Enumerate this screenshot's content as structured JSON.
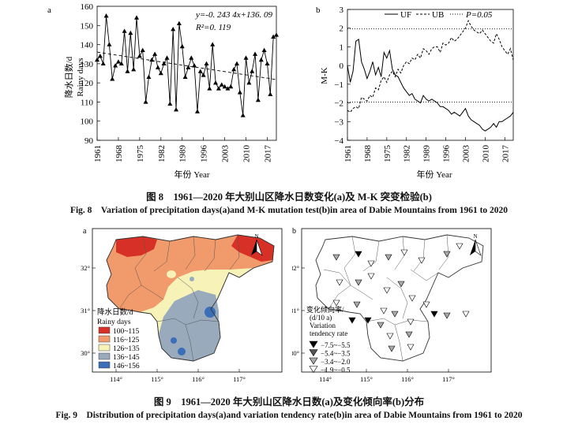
{
  "fig8": {
    "caption_cn": "图 8　1961—2020 年大别山区降水日数变化(a)及 M-K 突变检验(b)",
    "caption_en": "Fig. 8　Variation of precipitation days(a)and M-K mutation test(b)in area of Dabie Mountains from 1961 to 2020",
    "panel_a": {
      "letter": "a",
      "equation": "y=-0. 243 4x+136. 09",
      "r2": "R²=0. 119",
      "ylabel_cn": "降水日数/d",
      "ylabel_en": "Rainy days",
      "xlabel": "年份 Year"
    },
    "panel_b": {
      "letter": "b",
      "ylabel": "M-K",
      "xlabel": "年份 Year",
      "legend": [
        "UF",
        "UB",
        "P=0.05"
      ]
    }
  },
  "fig9": {
    "caption_cn": "图 9　1961—2020 年大别山区降水日数(a)及变化倾向率(b)分布",
    "caption_en": "Fig. 9　Distribution of precipitation days(a)and variation tendency rate(b)in area of Dabie Mountains from 1961 to 2020",
    "map_a": {
      "letter": "a",
      "north": "N",
      "legend_title_cn": "降水日数/d",
      "legend_title_en": "Rainy days",
      "legend_items": [
        {
          "label": "100~115",
          "color": "#d73027"
        },
        {
          "label": "116~125",
          "color": "#f19a6b"
        },
        {
          "label": "126~135",
          "color": "#f6f2b8"
        },
        {
          "label": "136~145",
          "color": "#9aaabd"
        },
        {
          "label": "146~156",
          "color": "#3a6fb8"
        }
      ],
      "lat_labels": [
        "32°",
        "31°",
        "30°"
      ],
      "lon_labels": [
        "114°",
        "115°",
        "116°",
        "117°"
      ]
    },
    "map_b": {
      "letter": "b",
      "north": "N",
      "legend_title": [
        "变化倾向率/",
        "(d/10 a)",
        "Variation",
        "tendency rate"
      ],
      "legend_items": [
        {
          "label": "−7.5~−5.5",
          "symbol": "triangle-black"
        },
        {
          "label": "−5.4~−3.5",
          "symbol": "triangle-darkgray"
        },
        {
          "label": "−3.4~−2.0",
          "symbol": "triangle-gray"
        },
        {
          "label": "−1.9~−0.5",
          "symbol": "triangle-white"
        }
      ],
      "lat_labels": [
        "32°",
        "31°",
        "30°"
      ],
      "lon_labels": [
        "114°",
        "115°",
        "116°",
        "117°"
      ]
    }
  },
  "chart_data": [
    {
      "type": "line",
      "panel": "a",
      "x_ticks": [
        1961,
        1968,
        1975,
        1982,
        1989,
        1996,
        2003,
        2010,
        2017
      ],
      "y_ticks": [
        90,
        100,
        110,
        120,
        130,
        140,
        150,
        160
      ],
      "ylim": [
        90,
        160
      ],
      "xlim": [
        1961,
        2020
      ],
      "series": [
        {
          "x": [
            1961,
            1962,
            1963,
            1964,
            1965,
            1966,
            1967,
            1968,
            1969,
            1970,
            1971,
            1972,
            1973,
            1974,
            1975,
            1976,
            1977,
            1978,
            1979,
            1980,
            1981,
            1982,
            1983,
            1984,
            1985,
            1986,
            1987,
            1988,
            1989,
            1990,
            1991,
            1992,
            1993,
            1994,
            1995,
            1996,
            1997,
            1998,
            1999,
            2000,
            2001,
            2002,
            2003,
            2004,
            2005,
            2006,
            2007,
            2008,
            2009,
            2010,
            2011,
            2012,
            2013,
            2014,
            2015,
            2016,
            2017,
            2018,
            2019,
            2020
          ],
          "values": [
            132,
            134,
            130,
            155,
            140,
            122,
            129,
            131,
            130,
            147,
            126,
            146,
            127,
            154,
            134,
            137,
            110,
            123,
            132,
            135,
            128,
            125,
            130,
            133,
            109,
            148,
            106,
            151,
            139,
            123,
            128,
            133,
            129,
            105,
            126,
            124,
            130,
            117,
            140,
            120,
            117,
            119,
            118,
            117,
            118,
            127,
            130,
            115,
            103,
            133,
            120,
            126,
            135,
            111,
            132,
            137,
            130,
            114,
            144,
            145
          ]
        },
        {
          "name": "trend",
          "x": [
            1961,
            2020
          ],
          "values": [
            136.09,
            121.73
          ]
        }
      ]
    },
    {
      "type": "line",
      "panel": "b",
      "x_ticks": [
        1961,
        1968,
        1975,
        1982,
        1989,
        1996,
        2003,
        2010,
        2017
      ],
      "y_ticks": [
        -4,
        -3,
        -2,
        -1,
        0,
        1,
        2,
        3
      ],
      "ylim": [
        -4,
        3
      ],
      "xlim": [
        1961,
        2020
      ],
      "series": [
        {
          "name": "UF",
          "x": [
            1961,
            1962,
            1963,
            1964,
            1965,
            1966,
            1967,
            1968,
            1969,
            1970,
            1971,
            1972,
            1973,
            1974,
            1975,
            1976,
            1977,
            1978,
            1979,
            1980,
            1981,
            1982,
            1983,
            1984,
            1985,
            1986,
            1987,
            1988,
            1989,
            1990,
            1991,
            1992,
            1993,
            1994,
            1995,
            1996,
            1997,
            1998,
            1999,
            2000,
            2001,
            2002,
            2003,
            2004,
            2005,
            2006,
            2007,
            2008,
            2009,
            2010,
            2011,
            2012,
            2013,
            2014,
            2015,
            2016,
            2017,
            2018,
            2019,
            2020
          ],
          "values": [
            0.0,
            -0.9,
            -0.3,
            1.3,
            1.4,
            0.2,
            -0.2,
            -0.7,
            -0.3,
            0.2,
            -0.5,
            -0.1,
            -0.6,
            0.7,
            0.4,
            0.8,
            -0.2,
            -0.5,
            -0.6,
            -0.9,
            -1.2,
            -1.4,
            -1.6,
            -1.5,
            -1.8,
            -1.9,
            -2.0,
            -1.6,
            -1.8,
            -1.9,
            -1.8,
            -1.9,
            -2.0,
            -2.2,
            -2.2,
            -2.3,
            -2.4,
            -2.6,
            -2.5,
            -2.6,
            -2.7,
            -2.5,
            -2.3,
            -2.7,
            -2.9,
            -3.0,
            -3.1,
            -3.2,
            -3.4,
            -3.5,
            -3.4,
            -3.3,
            -3.1,
            -3.3,
            -3.0,
            -3.0,
            -2.9,
            -2.8,
            -2.7,
            -2.5
          ]
        },
        {
          "name": "UB",
          "x": [
            1961,
            1962,
            1963,
            1964,
            1965,
            1966,
            1967,
            1968,
            1969,
            1970,
            1971,
            1972,
            1973,
            1974,
            1975,
            1976,
            1977,
            1978,
            1979,
            1980,
            1981,
            1982,
            1983,
            1984,
            1985,
            1986,
            1987,
            1988,
            1989,
            1990,
            1991,
            1992,
            1993,
            1994,
            1995,
            1996,
            1997,
            1998,
            1999,
            2000,
            2001,
            2002,
            2003,
            2004,
            2005,
            2006,
            2007,
            2008,
            2009,
            2010,
            2011,
            2012,
            2013,
            2014,
            2015,
            2016,
            2017,
            2018,
            2019,
            2020
          ],
          "values": [
            -2.4,
            -2.5,
            -2.3,
            -2.2,
            -2.3,
            -1.7,
            -1.8,
            -1.9,
            -1.6,
            -1.7,
            -1.2,
            -1.3,
            -0.8,
            -0.6,
            -0.9,
            -0.5,
            -0.3,
            -0.6,
            -0.2,
            -0.4,
            0.0,
            0.2,
            0.1,
            0.4,
            0.3,
            0.6,
            0.4,
            0.9,
            0.8,
            0.6,
            0.9,
            1.0,
            1.0,
            0.7,
            1.2,
            1.1,
            1.2,
            1.5,
            1.3,
            1.4,
            1.6,
            1.8,
            2.0,
            2.4,
            2.1,
            1.9,
            1.8,
            1.7,
            1.9,
            1.7,
            1.5,
            1.3,
            1.2,
            1.7,
            1.4,
            1.0,
            0.8,
            0.6,
            0.9,
            0.3
          ]
        },
        {
          "name": "P=0.05",
          "x": [
            1961,
            2020
          ],
          "values": [
            1.96,
            1.96
          ]
        },
        {
          "name": "P=0.05",
          "x": [
            1961,
            2020
          ],
          "values": [
            -1.96,
            -1.96
          ]
        }
      ]
    }
  ]
}
